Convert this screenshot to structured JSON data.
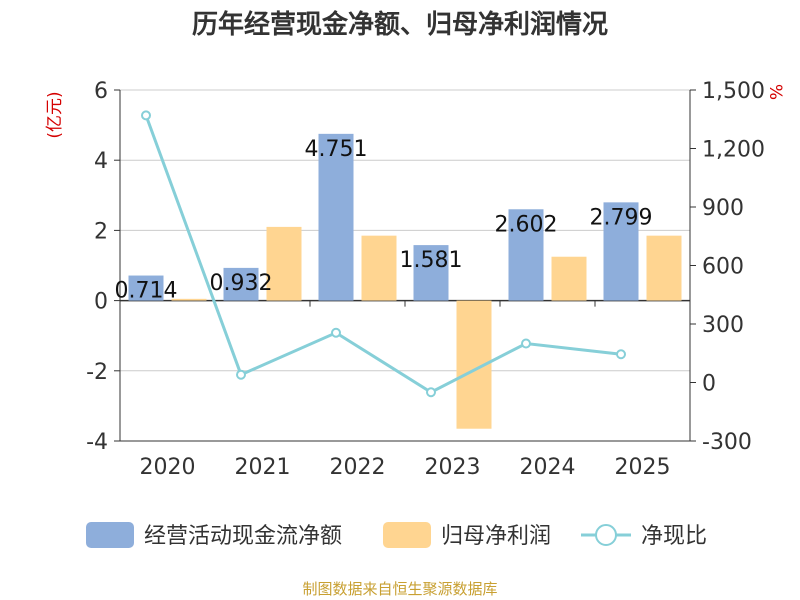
{
  "title": "历年经营现金净额、归母净利润情况",
  "source": "制图数据来自恒生聚源数据库",
  "colors": {
    "cash": "#8eaedb",
    "profit": "#ffd591",
    "ratio": "#86cfd8",
    "unit": "#d40000",
    "source": "#c8a032"
  },
  "chart_data": {
    "type": "bar",
    "title": "历年经营现金净额、归母净利润情况",
    "categories": [
      "2020",
      "2021",
      "2022",
      "2023",
      "2024",
      "2025"
    ],
    "left_axis": {
      "unit": "(亿元)",
      "min": -4,
      "max": 6,
      "ticks": [
        "-4",
        "-2",
        "0",
        "2",
        "4",
        "6"
      ]
    },
    "right_axis": {
      "unit": "%",
      "min": -300,
      "max": 1500,
      "ticks": [
        "-300",
        "0",
        "300",
        "600",
        "900",
        "1,200",
        "1,500"
      ]
    },
    "series": [
      {
        "name": "经营活动现金流净额",
        "type": "bar",
        "axis": "left",
        "values": [
          0.714,
          0.932,
          4.751,
          1.581,
          2.602,
          2.799
        ],
        "labels": [
          "0.714",
          "0.932",
          "4.751",
          "1.581",
          "2.602",
          "2.799"
        ]
      },
      {
        "name": "归母净利润",
        "type": "bar",
        "axis": "left",
        "values": [
          0.05,
          2.1,
          1.85,
          -3.65,
          1.25,
          1.85
        ]
      },
      {
        "name": "净现比",
        "type": "line",
        "axis": "right",
        "values": [
          1370,
          40,
          255,
          -50,
          200,
          145
        ]
      }
    ]
  }
}
